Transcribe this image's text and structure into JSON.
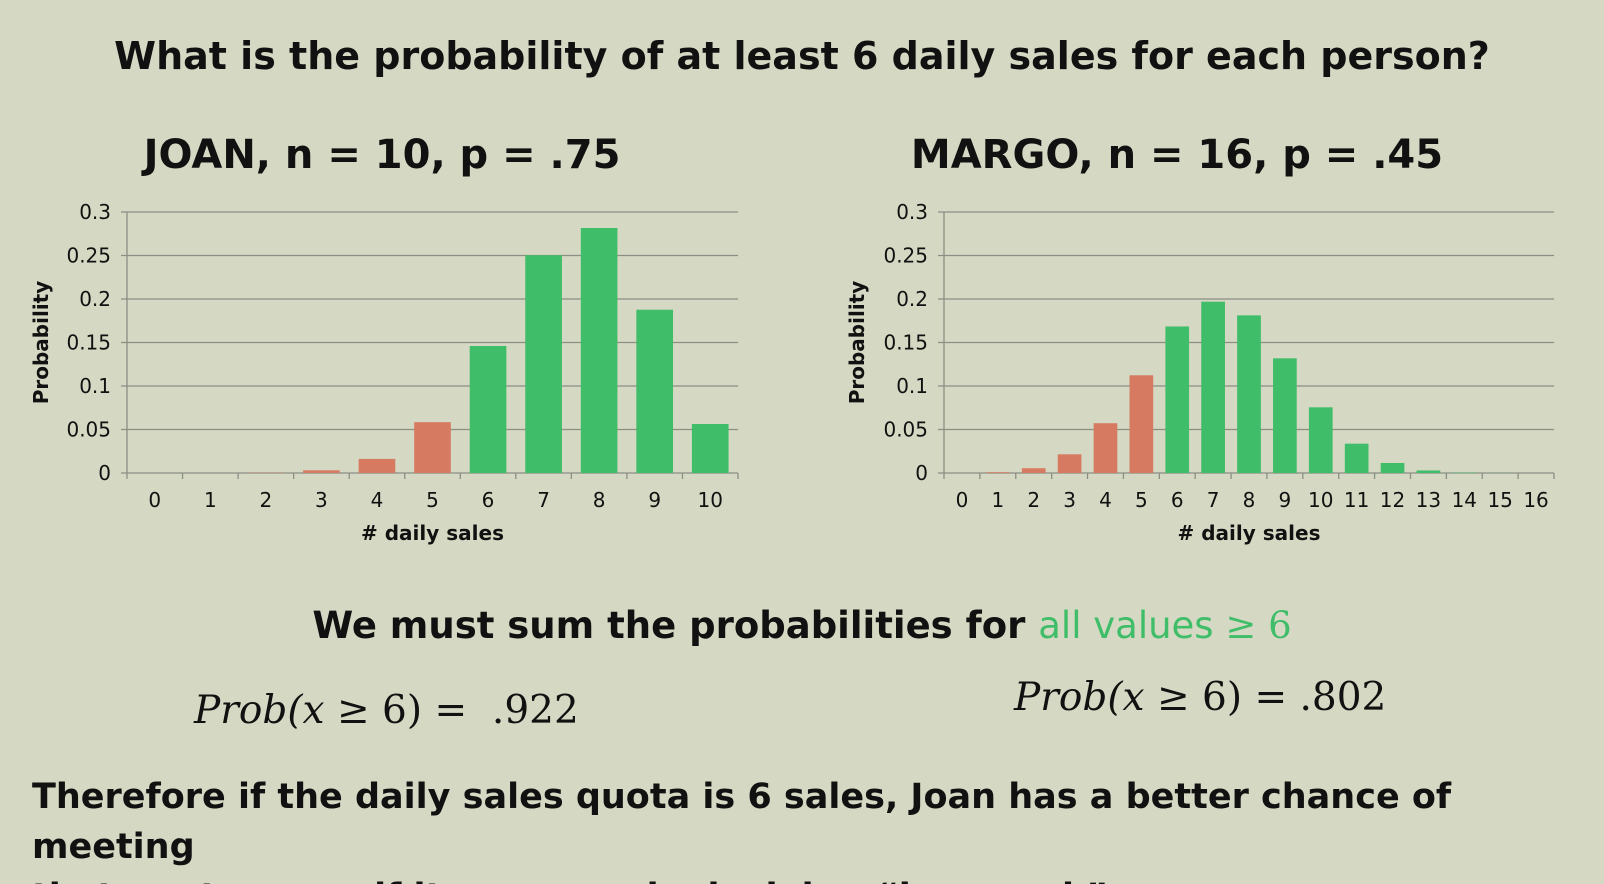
{
  "page": {
    "title": "What is the probability of at least 6 daily sales for each person?",
    "middle_text_prefix": "We must sum the probabilities for ",
    "middle_text_highlight": "all values ",
    "middle_text_symbol": "≥ 6",
    "formula_joan_var": "Prob(x",
    "formula_joan_rest": " ≥ 6) =  .922",
    "formula_margo_var": "Prob(x",
    "formula_margo_rest": " ≥ 6) = .802",
    "conclusion_line1": "Therefore if the daily sales quota is 6 sales, Joan has a better chance of meeting",
    "conclusion_line2": "that quota; even if it appears she is doing “less work”",
    "colors": {
      "background": "#d5d9c3",
      "below_threshold": "#d67a61",
      "at_or_above_threshold": "#3fbd68",
      "gridline": "#8a8f84"
    }
  },
  "chart_data": [
    {
      "type": "bar",
      "title": "JOAN, n = 10, p = .75",
      "xlabel": "# daily sales",
      "ylabel": "Probability",
      "categories": [
        "0",
        "1",
        "2",
        "3",
        "4",
        "5",
        "6",
        "7",
        "8",
        "9",
        "10"
      ],
      "values": [
        0,
        0,
        0.0004,
        0.0031,
        0.0162,
        0.0584,
        0.146,
        0.2503,
        0.2816,
        0.1877,
        0.0563
      ],
      "highlight_from": 6,
      "ylim": [
        0,
        0.3
      ],
      "yticks": [
        "0",
        "0.05",
        "0.1",
        "0.15",
        "0.2",
        "0.25",
        "0.3"
      ],
      "grid": true
    },
    {
      "type": "bar",
      "title": "MARGO, n = 16, p = .45",
      "xlabel": "# daily sales",
      "ylabel": "Probability",
      "categories": [
        "0",
        "1",
        "2",
        "3",
        "4",
        "5",
        "6",
        "7",
        "8",
        "9",
        "10",
        "11",
        "12",
        "13",
        "14",
        "15",
        "16"
      ],
      "values": [
        0.0001,
        0.0009,
        0.0055,
        0.0215,
        0.0572,
        0.1123,
        0.1684,
        0.1969,
        0.1812,
        0.1318,
        0.0755,
        0.0337,
        0.0115,
        0.0029,
        0.0005,
        0.0001,
        0
      ],
      "highlight_from": 6,
      "ylim": [
        0,
        0.3
      ],
      "yticks": [
        "0",
        "0.05",
        "0.1",
        "0.15",
        "0.2",
        "0.25",
        "0.3"
      ],
      "grid": true
    }
  ]
}
